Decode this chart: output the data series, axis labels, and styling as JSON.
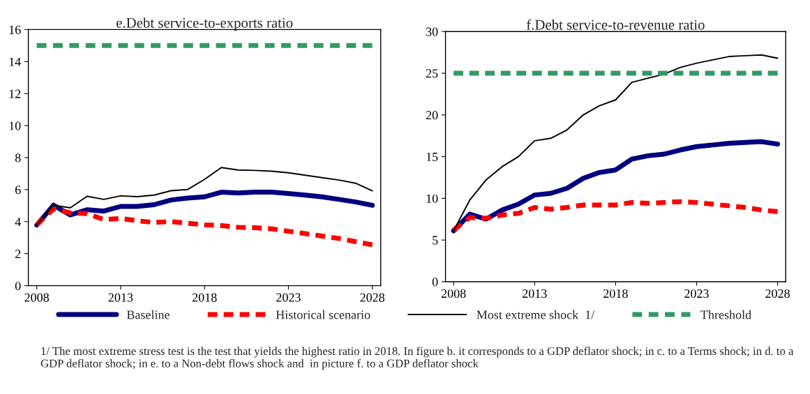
{
  "chart_data": [
    {
      "type": "line",
      "title": "e.Debt service-to-exports ratio",
      "categories": [
        "2008",
        null,
        null,
        null,
        null,
        "2013",
        null,
        null,
        null,
        null,
        "2018",
        null,
        null,
        null,
        null,
        "2023",
        null,
        null,
        null,
        null,
        "2028"
      ],
      "series": [
        {
          "name": "Baseline",
          "color": "#000080",
          "line_style": "solid",
          "values": [
            3.78,
            5.03,
            4.42,
            4.74,
            4.66,
            4.95,
            4.95,
            5.06,
            5.35,
            5.47,
            5.55,
            5.84,
            5.79,
            5.84,
            5.84,
            5.76,
            5.66,
            5.55,
            5.39,
            5.23,
            5.02
          ]
        },
        {
          "name": "Historical scenario",
          "color": "#ff0000",
          "line_style": "dashed",
          "values": [
            3.8,
            4.8,
            4.55,
            4.5,
            4.13,
            4.2,
            4.05,
            3.95,
            4.0,
            3.9,
            3.8,
            3.75,
            3.65,
            3.62,
            3.55,
            3.4,
            3.25,
            3.1,
            2.95,
            2.75,
            2.55
          ]
        },
        {
          "name": "Most extreme shock  1/",
          "color": "#000000",
          "line_style": "solid",
          "values": [
            3.78,
            5.03,
            4.86,
            5.58,
            5.39,
            5.61,
            5.56,
            5.66,
            5.93,
            6.01,
            6.64,
            7.38,
            7.23,
            7.2,
            7.15,
            7.05,
            6.9,
            6.75,
            6.6,
            6.4,
            5.93
          ]
        },
        {
          "name": "Threshold",
          "color": "#339966",
          "line_style": "dashed",
          "values": [
            15,
            15,
            15,
            15,
            15,
            15,
            15,
            15,
            15,
            15,
            15,
            15,
            15,
            15,
            15,
            15,
            15,
            15,
            15,
            15,
            15
          ]
        }
      ],
      "ylim": [
        0,
        16
      ],
      "yticks": [
        0,
        2,
        4,
        6,
        8,
        10,
        12,
        14,
        16
      ],
      "grid": false,
      "legend": "bottom",
      "annotations": [
        "1/ The most extreme stress test is the test that yields the highest ratio in 2018. In figure b. it corresponds to a GDP deflator shock; in c. to a Terms shock; in d. to a GDP deflator shock; in e. to a Non-debt flows shock and  in picture f. to a GDP deflator shock"
      ]
    },
    {
      "type": "line",
      "title": "f.Debt service-to-revenue ratio",
      "categories": [
        "2008",
        null,
        null,
        null,
        null,
        "2013",
        null,
        null,
        null,
        null,
        "2018",
        null,
        null,
        null,
        null,
        "2023",
        null,
        null,
        null,
        null,
        "2028"
      ],
      "series": [
        {
          "color": "#000080",
          "line_style": "solid",
          "values": [
            6.1,
            8.1,
            7.5,
            8.6,
            9.3,
            10.4,
            10.6,
            11.2,
            12.4,
            13.1,
            13.4,
            14.7,
            15.1,
            15.3,
            15.8,
            16.2,
            16.4,
            16.6,
            16.7,
            16.8,
            16.5
          ]
        },
        {
          "color": "#ff0000",
          "line_style": "dashed",
          "values": [
            6.2,
            7.7,
            7.6,
            8.0,
            8.2,
            8.9,
            8.7,
            8.9,
            9.2,
            9.2,
            9.2,
            9.5,
            9.4,
            9.5,
            9.6,
            9.5,
            9.3,
            9.1,
            8.9,
            8.6,
            8.4
          ]
        },
        {
          "color": "#000000",
          "line_style": "solid",
          "values": [
            6.1,
            9.8,
            12.2,
            13.8,
            15.0,
            16.9,
            17.2,
            18.2,
            20.0,
            21.1,
            21.8,
            23.9,
            24.4,
            24.9,
            25.7,
            26.2,
            26.6,
            27.0,
            27.1,
            27.2,
            26.8
          ]
        },
        {
          "color": "#339966",
          "line_style": "dashed",
          "values": [
            25,
            25,
            25,
            25,
            25,
            25,
            25,
            25,
            25,
            25,
            25,
            25,
            25,
            25,
            25,
            25,
            25,
            25,
            25,
            25,
            25
          ]
        }
      ],
      "ylim": [
        0,
        30
      ],
      "yticks": [
        0,
        5,
        10,
        15,
        20,
        25,
        30
      ],
      "grid": false,
      "legend": false
    }
  ]
}
